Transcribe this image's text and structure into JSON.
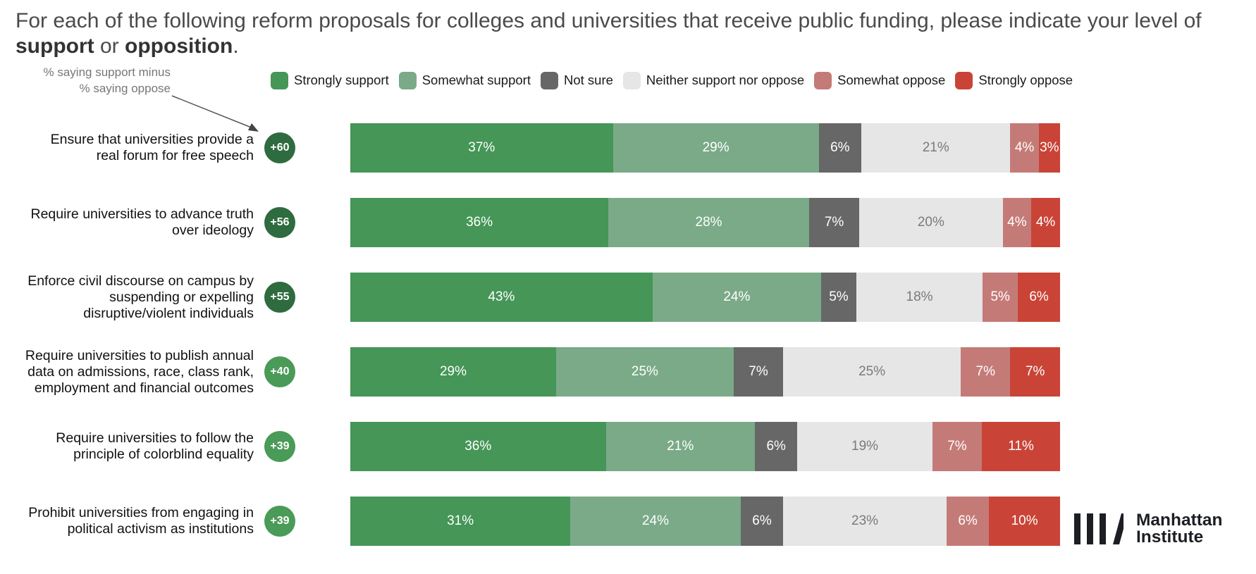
{
  "header": {
    "title_prefix": "For each of the following reform proposals for colleges and universities that receive public funding, please indicate your level of ",
    "title_bold_1": "support",
    "title_mid": " or ",
    "title_bold_2": "opposition",
    "title_suffix": "."
  },
  "annotation": {
    "line1": "% saying support minus",
    "line2": "% saying oppose"
  },
  "logo": {
    "line1": "Manhattan",
    "line2": "Institute"
  },
  "chart_data": {
    "type": "bar",
    "orientation": "horizontal",
    "stacked": true,
    "xlim": [
      0,
      100
    ],
    "legend_position": "top",
    "categories": [
      "Ensure that universities provide a real forum for free speech",
      "Require universities to advance truth over ideology",
      "Enforce civil discourse on campus by suspending or expelling disruptive/violent individuals",
      "Require universities to publish annual data on admissions, race, class rank, employment and financial outcomes",
      "Require universities to follow the principle of colorblind equality",
      "Prohibit universities from engaging in political activism as institutions"
    ],
    "category_lines": [
      [
        "Ensure that universities provide a",
        "real forum for free speech"
      ],
      [
        "Require universities to advance truth",
        "over ideology"
      ],
      [
        "Enforce civil discourse on campus by",
        "suspending or expelling",
        "disruptive/violent individuals"
      ],
      [
        "Require universities to publish annual",
        "data on admissions, race, class rank,",
        "employment and financial outcomes"
      ],
      [
        "Require universities to follow the",
        "principle of colorblind equality"
      ],
      [
        "Prohibit universities from engaging in",
        "political activism as institutions"
      ]
    ],
    "net": [
      "+60",
      "+56",
      "+55",
      "+40",
      "+39",
      "+39"
    ],
    "net_colors": [
      "#2e6b3e",
      "#2e6b3e",
      "#2e6b3e",
      "#4a9a58",
      "#4a9a58",
      "#4a9a58"
    ],
    "series": [
      {
        "name": "Strongly support",
        "color": "#459657",
        "text_color": "#ffffff",
        "values": [
          37,
          36,
          43,
          29,
          36,
          31
        ]
      },
      {
        "name": "Somewhat support",
        "color": "#7aaa88",
        "text_color": "#ffffff",
        "values": [
          29,
          28,
          24,
          25,
          21,
          24
        ]
      },
      {
        "name": "Not sure",
        "color": "#676767",
        "text_color": "#ffffff",
        "values": [
          6,
          7,
          5,
          7,
          6,
          6
        ]
      },
      {
        "name": "Neither support nor oppose",
        "color": "#e6e6e6",
        "text_color": "#7a7a7a",
        "values": [
          21,
          20,
          18,
          25,
          19,
          23
        ]
      },
      {
        "name": "Somewhat oppose",
        "color": "#c47b78",
        "text_color": "#ffffff",
        "values": [
          4,
          4,
          5,
          7,
          7,
          6
        ]
      },
      {
        "name": "Strongly oppose",
        "color": "#c94437",
        "text_color": "#ffffff",
        "values": [
          3,
          4,
          6,
          7,
          11,
          10
        ]
      }
    ]
  }
}
